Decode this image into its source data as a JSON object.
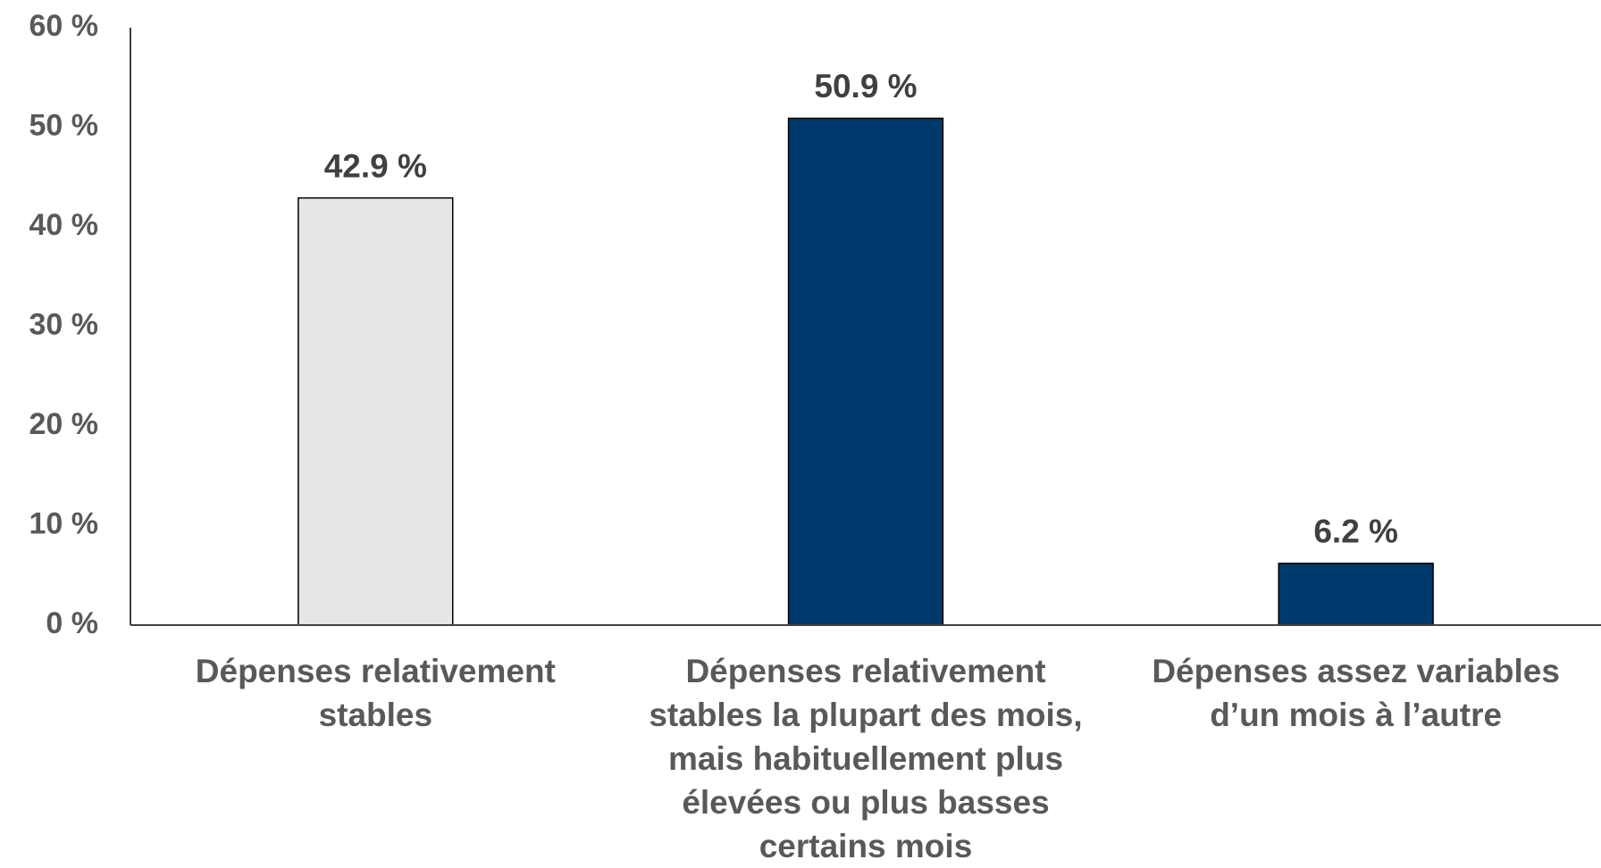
{
  "chart_data": {
    "type": "bar",
    "categories": [
      "Dépenses relativement stables",
      "Dépenses relativement stables la plupart des mois, mais habituellement plus élevées ou plus basses certains mois",
      "Dépenses assez variables d’un mois à l’autre"
    ],
    "values": [
      42.9,
      50.9,
      6.2
    ],
    "value_labels": [
      "42.9 %",
      "50.9 %",
      "6.2 %"
    ],
    "colors": [
      "#e6e6e6",
      "#003a6c",
      "#003a6c"
    ],
    "ylim": [
      0,
      60
    ],
    "yticks": [
      {
        "value": 0,
        "label": "0 %"
      },
      {
        "value": 10,
        "label": "10 %"
      },
      {
        "value": 20,
        "label": "20 %"
      },
      {
        "value": 30,
        "label": "30 %"
      },
      {
        "value": 40,
        "label": "40 %"
      },
      {
        "value": 50,
        "label": "50 %"
      },
      {
        "value": 60,
        "label": "60 %"
      }
    ],
    "grid": false
  }
}
